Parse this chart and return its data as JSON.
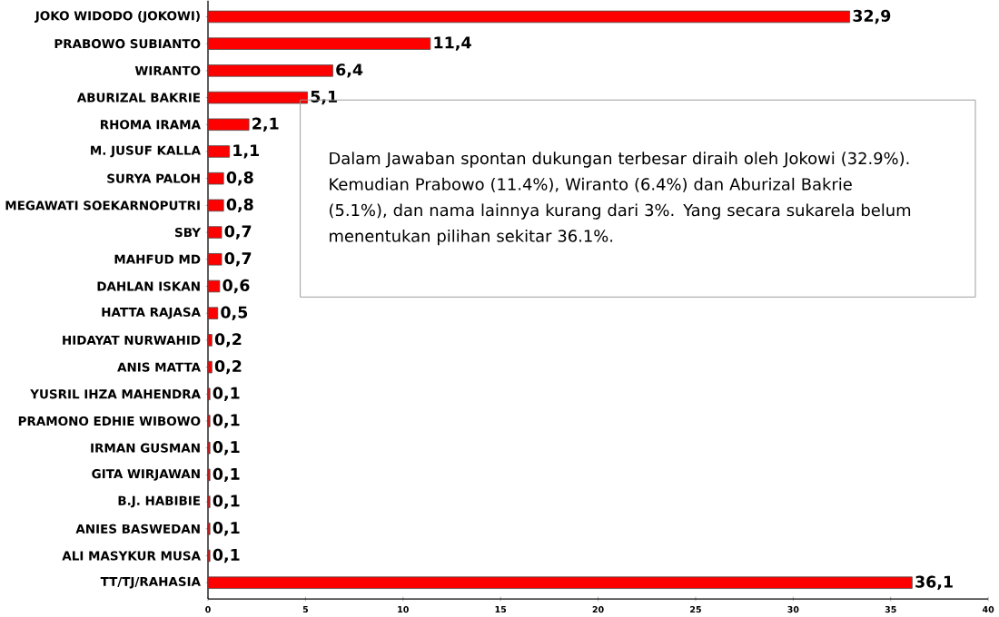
{
  "chart_data": {
    "type": "bar",
    "orientation": "horizontal",
    "categories": [
      "JOKO WIDODO (JOKOWI)",
      "PRABOWO SUBIANTO",
      "WIRANTO",
      "ABURIZAL BAKRIE",
      "RHOMA IRAMA",
      "M. JUSUF KALLA",
      "SURYA PALOH",
      "MEGAWATI SOEKARNOPUTRI",
      "SBY",
      "MAHFUD MD",
      "DAHLAN ISKAN",
      "HATTA RAJASA",
      "HIDAYAT NURWAHID",
      "ANIS MATTA",
      "YUSRIL IHZA MAHENDRA",
      "PRAMONO EDHIE WIBOWO",
      "IRMAN GUSMAN",
      "GITA WIRJAWAN",
      "B.J. HABIBIE",
      "ANIES BASWEDAN",
      "ALI MASYKUR MUSA",
      "TT/TJ/RAHASIA"
    ],
    "values": [
      32.9,
      11.4,
      6.4,
      5.1,
      2.1,
      1.1,
      0.8,
      0.8,
      0.7,
      0.7,
      0.6,
      0.5,
      0.2,
      0.2,
      0.1,
      0.1,
      0.1,
      0.1,
      0.1,
      0.1,
      0.1,
      36.1
    ],
    "value_labels": [
      "32,9",
      "11,4",
      "6,4",
      "5,1",
      "2,1",
      "1,1",
      "0,8",
      "0,8",
      "0,7",
      "0,7",
      "0,6",
      "0,5",
      "0,2",
      "0,2",
      "0,1",
      "0,1",
      "0,1",
      "0,1",
      "0,1",
      "0,1",
      "0,1",
      "36,1"
    ],
    "color": "#ff0000",
    "xlim": [
      0,
      40
    ],
    "xticks": [
      0,
      5,
      10,
      15,
      20,
      25,
      30,
      35,
      40
    ],
    "annotations": [
      "Dalam Jawaban spontan dukungan terbesar diraih oleh Jokowi (32.9%). Kemudian Prabowo (11.4%), Wiranto (6.4%) dan Aburizal Bakrie (5.1%), dan nama lainnya kurang dari 3%. Yang secara sukarela belum menentukan pilihan sekitar 36.1%."
    ]
  }
}
